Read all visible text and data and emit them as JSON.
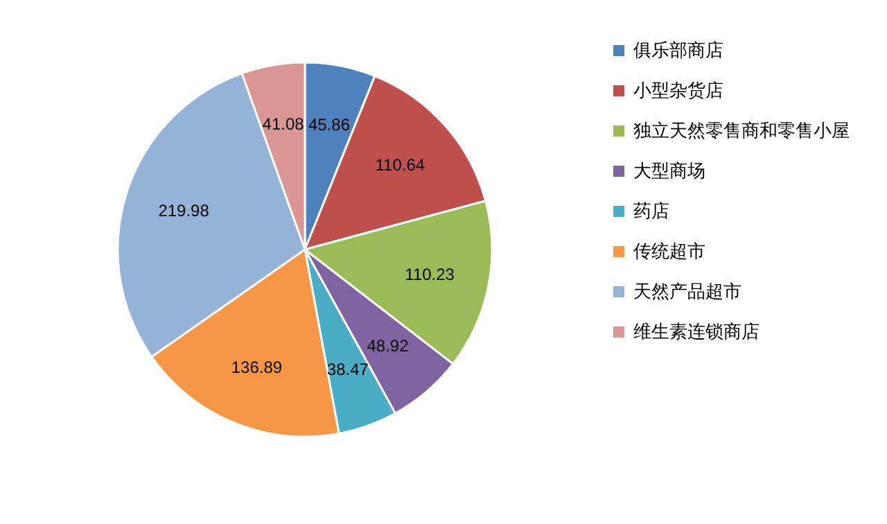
{
  "chart_data": {
    "type": "pie",
    "categories": [
      "俱乐部商店",
      "小型杂货店",
      "独立天然零售商和零售小屋",
      "大型商场",
      "药店",
      "传统超市",
      "天然产品超市",
      "维生素连锁商店"
    ],
    "values": [
      45.86,
      110.64,
      110.23,
      48.92,
      38.47,
      136.89,
      219.98,
      41.08
    ],
    "colors": [
      "#4f81bd",
      "#c0504d",
      "#9bbb59",
      "#8064a2",
      "#4bacc6",
      "#f79646",
      "#95b3d7",
      "#d99694"
    ],
    "data_labels": true,
    "legend": "right"
  }
}
